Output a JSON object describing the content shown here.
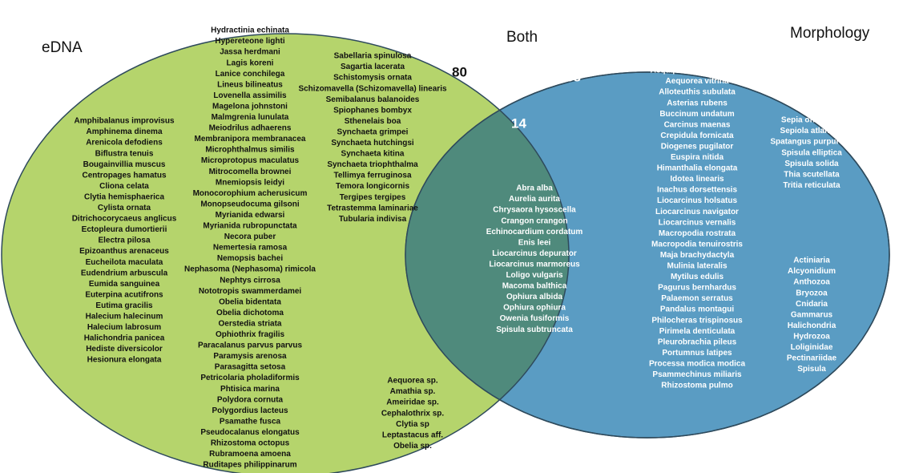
{
  "labels": {
    "edna": "eDNA",
    "both": "Both",
    "morphology": "Morphology"
  },
  "counts": {
    "edna": 80,
    "morphology": 38,
    "both": 14
  },
  "groups": [
    {
      "items": [
        "Amphibalanus improvisus",
        "Amphinema dinema",
        "Arenicola defodiens",
        "Biflustra tenuis",
        "Bougainvillia muscus",
        "Centropages hamatus",
        "Cliona celata",
        "Clytia hemisphaerica",
        "Cylista ornata",
        "Ditrichocorycaeus anglicus",
        "Ectopleura dumortierii",
        "Electra pilosa",
        "Epizoanthus arenaceus",
        "Eucheilota maculata",
        "Eudendrium arbuscula",
        "Eumida sanguinea",
        "Euterpina acutifrons",
        "Eutima gracilis",
        "Halecium halecinum",
        "Halecium labrosum",
        "Halichondria panicea",
        "Hediste diversicolor",
        "Hesionura elongata"
      ]
    },
    {
      "items": [
        "Hydractinia echinata",
        "Hypereteone lighti",
        "Jassa herdmani",
        "Lagis koreni",
        "Lanice conchilega",
        "Lineus bilineatus",
        "Lovenella assimilis",
        "Magelona johnstoni",
        "Malmgrenia lunulata",
        "Meiodrilus adhaerens",
        "Membranipora membranacea",
        "Microphthalmus similis",
        "Microprotopus maculatus",
        "Mitrocomella brownei",
        "Mnemiopsis leidyi",
        "Monocorophium acherusicum",
        "Monopseudocuma gilsoni",
        "Myrianida edwarsi",
        "Myrianida rubropunctata",
        "Necora puber",
        "Nemertesia ramosa",
        "Nemopsis bachei",
        "Nephasoma (Nephasoma) rimicola",
        "Nephtys cirrosa",
        "Nototropis swammerdamei",
        "Obelia bidentata",
        "Obelia dichotoma",
        "Oerstedia striata",
        "Ophiothrix fragilis",
        "Paracalanus parvus parvus",
        "Paramysis arenosa",
        "Parasagitta setosa",
        "Petricolaria pholadiformis",
        "Phtisica marina",
        "Polydora cornuta",
        "Polygordius lacteus",
        "Psamathe fusca",
        "Pseudocalanus elongatus",
        "Rhizostoma octopus",
        "Rubramoena amoena",
        "Ruditapes philippinarum"
      ]
    },
    {
      "items": [
        "Sabellaria spinulosa",
        "Sagartia lacerata",
        "Schistomysis ornata",
        "Schizomavella (Schizomavella) linearis",
        "Semibalanus balanoides",
        "Spiophanes bombyx",
        "Sthenelais boa",
        "Synchaeta grimpei",
        "Synchaeta hutchingsi",
        "Synchaeta kitina",
        "Synchaeta triophthalma",
        "Tellimya ferruginosa",
        "Temora longicornis",
        "Tergipes tergipes",
        "Tetrastemma laminariae",
        "Tubularia indivisa"
      ]
    },
    {
      "items": [
        "Aequorea sp.",
        "Amathia sp.",
        "Ameiridae sp.",
        "Cephalothrix sp.",
        "Clytia sp",
        "Leptastacus aff.",
        "Obelia sp."
      ]
    },
    {
      "items": [
        "Abra alba",
        "Aurelia aurita",
        "Chrysaora hysoscella",
        "Crangon crangon",
        "Echinocardium cordatum",
        "Enis leei",
        "Liocarcinus depurator",
        "Liocarcinus marmoreus",
        "Loligo vulgaris",
        "Macoma balthica",
        "Ophiura albida",
        "Ophiura ophiura",
        "Owenia fusiformis",
        "Spisula subtruncata"
      ]
    },
    {
      "items": [
        "Aequipecten opercularis",
        "Aequorea vitrina",
        "Alloteuthis subulata",
        "Asterias rubens",
        "Buccinum undatum",
        "Carcinus maenas",
        "Crepidula fornicata",
        "Diogenes pugilator",
        "Euspira nitida",
        "Himanthalia elongata",
        "Idotea linearis",
        "Inachus dorsettensis",
        "Liocarcinus holsatus",
        "Liocarcinus navigator",
        "Liocarcinus vernalis",
        "Macropodia rostrata",
        "Macropodia tenuirostris",
        "Maja brachydactyla",
        "Mulinia lateralis",
        "Mytilus edulis",
        "Pagurus bernhardus",
        "Palaemon serratus",
        "Pandalus montagui",
        "Philocheras trispinosus",
        "Pirimela denticulata",
        "Pleurobrachia pileus",
        "Portumnus latipes",
        "Processa modica modica",
        "Psammechinus miliaris",
        "Rhizostoma pulmo"
      ]
    },
    {
      "items": [
        "Sepia officinalis",
        "Sepiola atlantica",
        "Spatangus purpureus",
        "Spisula elliptica",
        "Spisula solida",
        "Thia scutellata",
        "Tritia reticulata"
      ]
    },
    {
      "items": [
        "Actiniaria",
        "Alcyonidium",
        "Anthozoa",
        "Bryozoa",
        "Cnidaria",
        "Gammarus",
        "Halichondria",
        "Hydrozoa",
        "Loliginidae",
        "Pectinariidae",
        "Spisula"
      ]
    }
  ]
}
